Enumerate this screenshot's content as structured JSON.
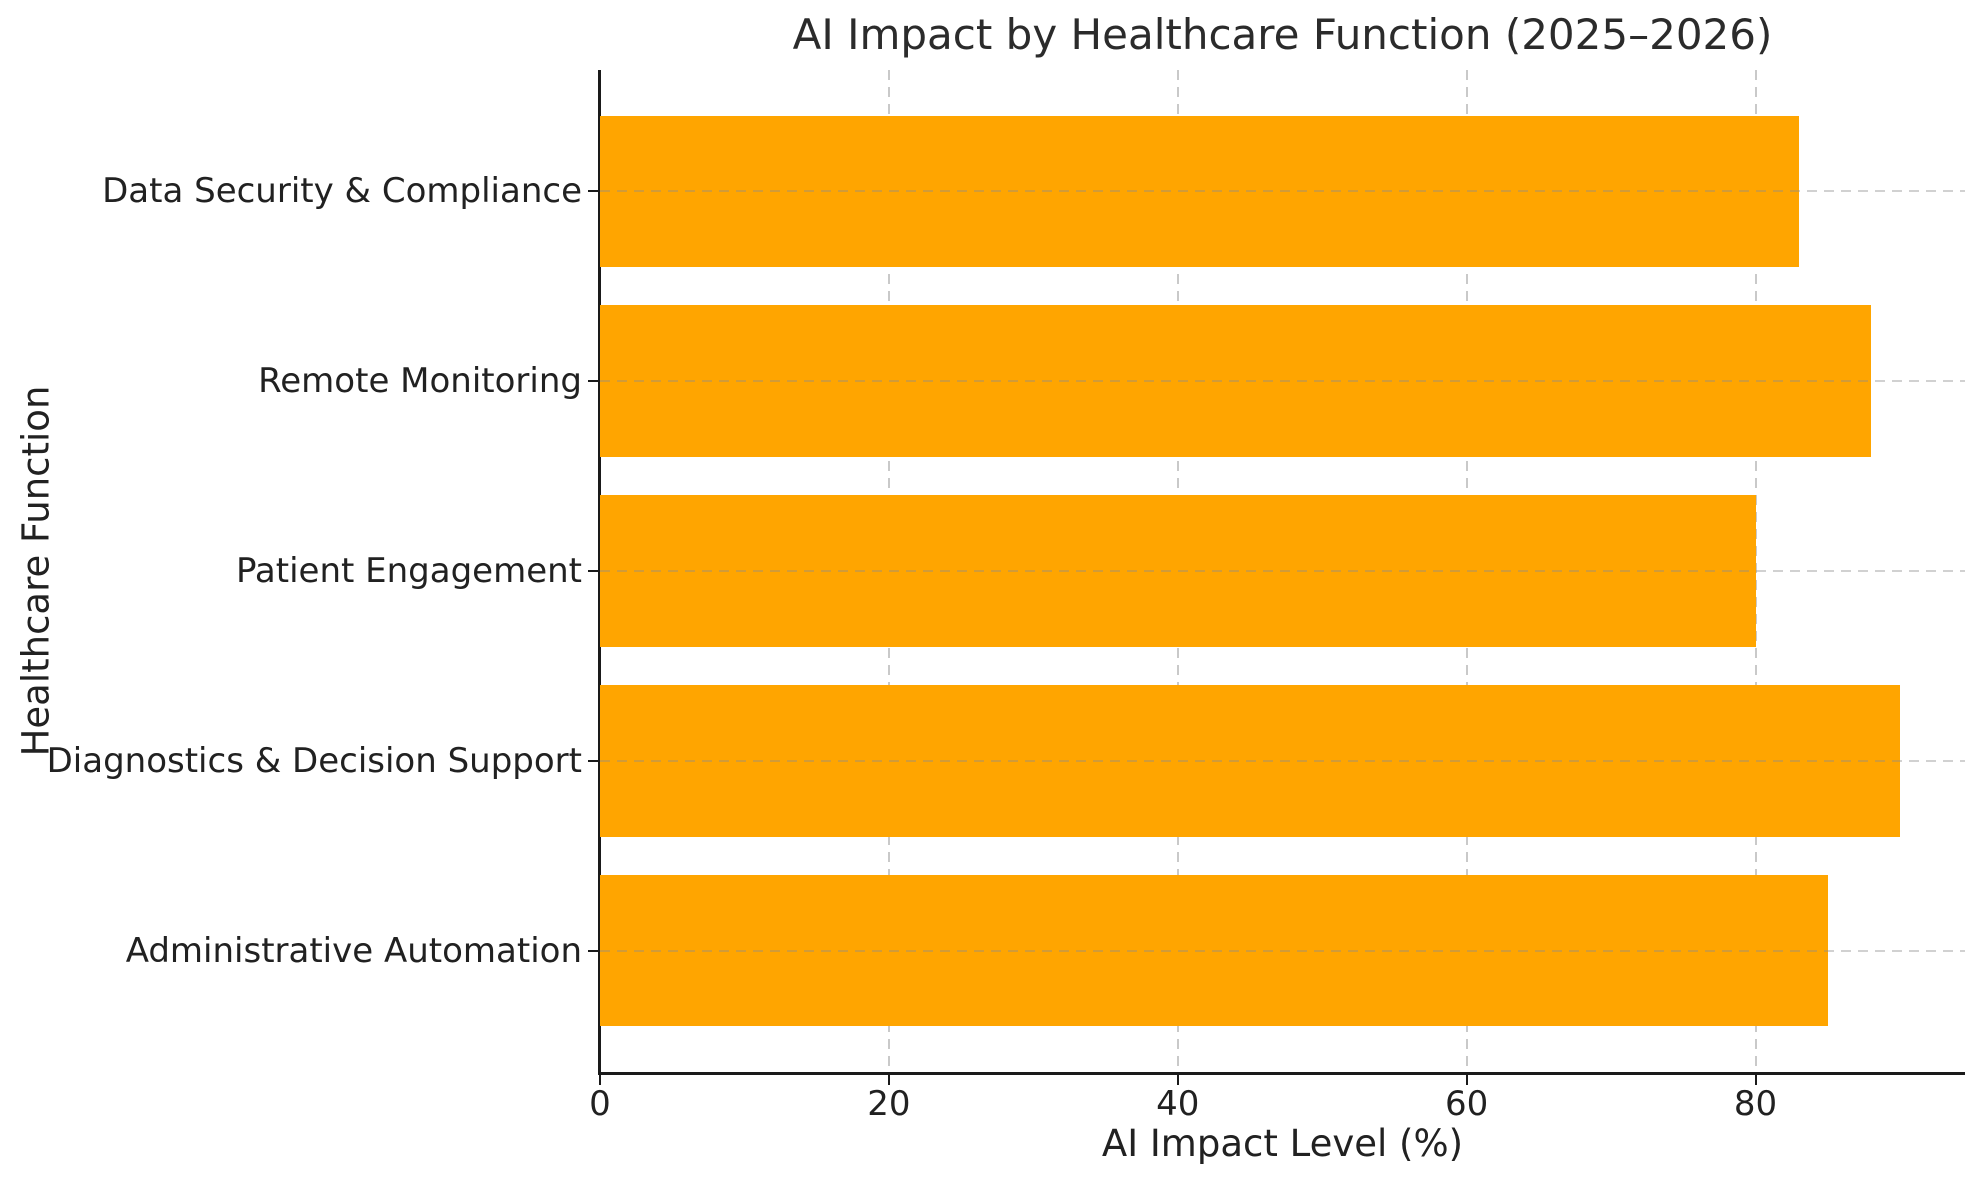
{
  "title": "AI Impact by Healthcare Function (2025–2026)",
  "chart_data": {
    "type": "bar",
    "orientation": "horizontal",
    "title": "AI Impact by Healthcare Function (2025–2026)",
    "xlabel": "AI Impact Level (%)",
    "ylabel": "Healthcare Function",
    "categories": [
      "Data Security & Compliance",
      "Remote Monitoring",
      "Patient Engagement",
      "Diagnostics & Decision Support",
      "Administrative Automation"
    ],
    "values": [
      83,
      88,
      80,
      90,
      85
    ],
    "xlim": [
      0,
      94.5
    ],
    "xticks": [
      0,
      20,
      40,
      60,
      80
    ],
    "grid": true,
    "grid_style": "dashed",
    "legend": "none",
    "bar_color": "#FFA500",
    "axis_color": "#1a1a1a",
    "grid_color": "#c9c9c9",
    "background": "#FFFFFF"
  }
}
